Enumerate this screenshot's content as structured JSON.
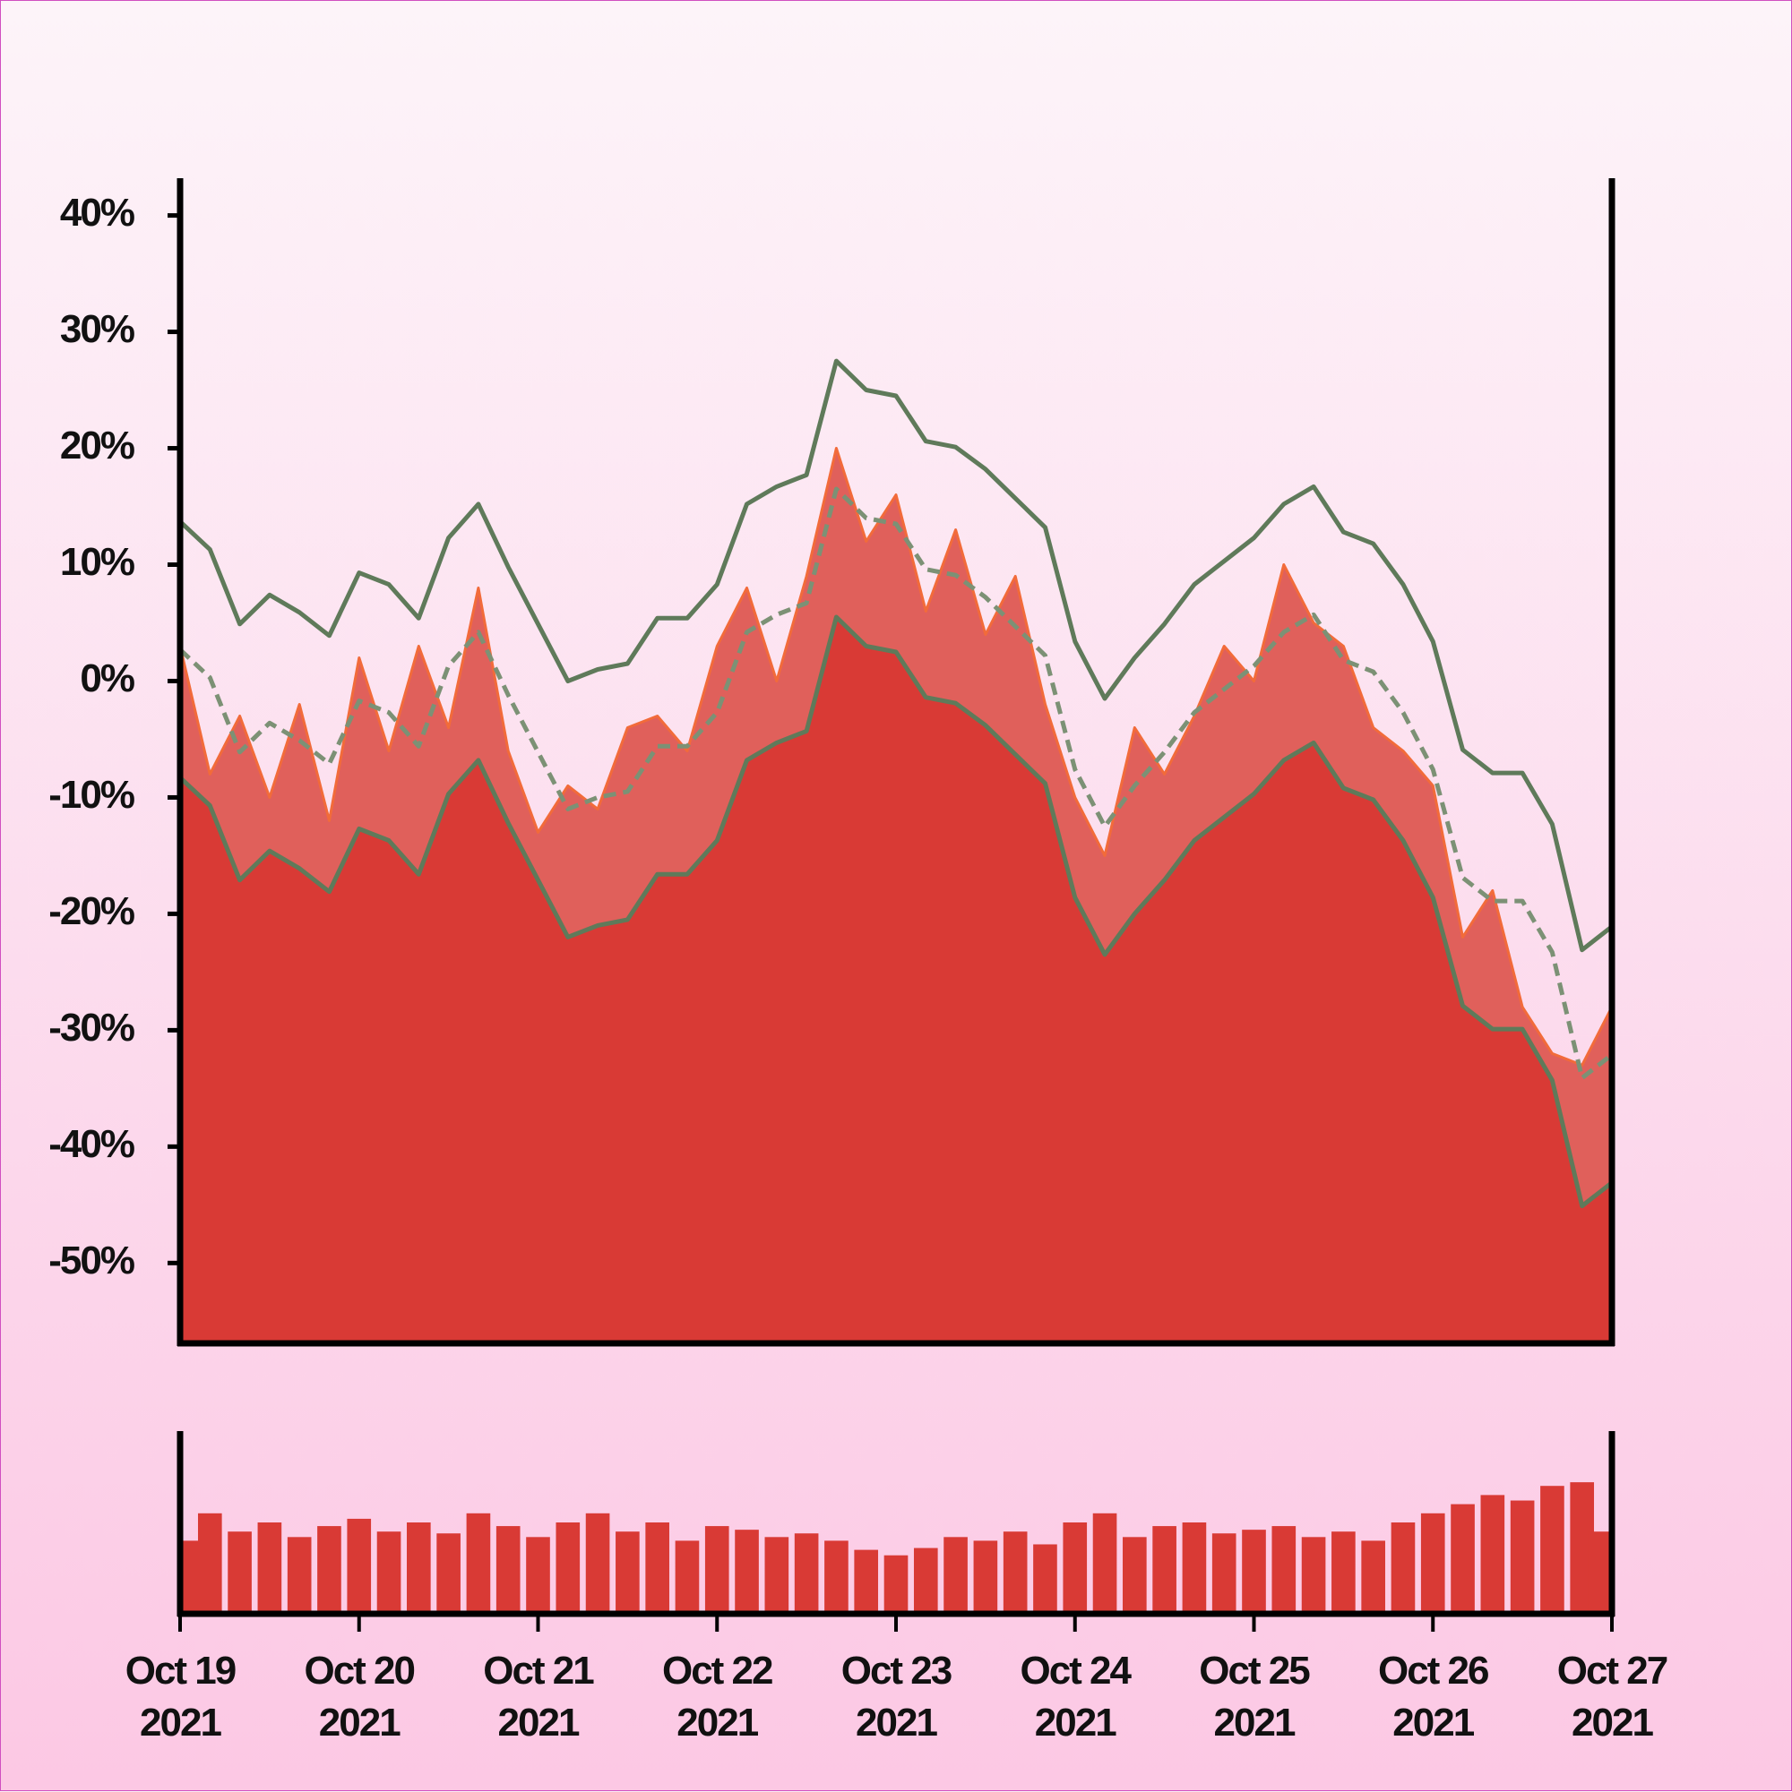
{
  "chart_data": [
    {
      "type": "band-area",
      "x": [
        0,
        0.1667,
        0.3333,
        0.5,
        0.6667,
        0.8333,
        1,
        1.1667,
        1.3333,
        1.5,
        1.6667,
        1.8333,
        2,
        2.1667,
        2.3333,
        2.5,
        2.6667,
        2.8333,
        3,
        3.1667,
        3.3333,
        3.5,
        3.6667,
        3.8333,
        4,
        4.1667,
        4.3333,
        4.5,
        4.6667,
        4.8333,
        5,
        5.1667,
        5.3333,
        5.5,
        5.6667,
        5.8333,
        6,
        6.1667,
        6.3333,
        6.5,
        6.6667,
        6.8333,
        7,
        7.1667,
        7.3333,
        7.5,
        7.6667,
        7.8333,
        8
      ],
      "xlim": [
        0,
        8
      ],
      "ylim": [
        -56.9,
        43.2
      ],
      "yticks": [
        {
          "value": -50,
          "label": "-50%"
        },
        {
          "value": -40,
          "label": "-40%"
        },
        {
          "value": -30,
          "label": "-30%"
        },
        {
          "value": -20,
          "label": "-20%"
        },
        {
          "value": -10,
          "label": "-10%"
        },
        {
          "value": 0,
          "label": "0%"
        },
        {
          "value": 10,
          "label": "10%"
        },
        {
          "value": 20,
          "label": "20%"
        },
        {
          "value": 30,
          "label": "30%"
        },
        {
          "value": 40,
          "label": "40%"
        }
      ],
      "series": [
        {
          "role": "price",
          "color": "#f26b3a",
          "fill": "#e0605b",
          "values": [
            3,
            -8,
            -3,
            -10,
            -2,
            -12,
            2,
            -6,
            3,
            -4,
            8,
            -6,
            -13,
            -9,
            -11,
            -4,
            -3,
            -6,
            3,
            8,
            0,
            9,
            20,
            12,
            16,
            6,
            13,
            4,
            9,
            -2,
            -10,
            -15,
            -4,
            -8,
            -3,
            3,
            0,
            10,
            5,
            3,
            -4,
            -6,
            -9,
            -22,
            -18,
            -28,
            -32,
            -33,
            -28
          ]
        },
        {
          "role": "lower",
          "color": "#5f7a5a",
          "fill": "#d93a35",
          "values": [
            -8.3,
            -10.7,
            -17.1,
            -14.6,
            -16.1,
            -18.1,
            -12.7,
            -13.7,
            -16.6,
            -9.7,
            -6.8,
            -12.2,
            -17.1,
            -22,
            -21,
            -20.5,
            -16.6,
            -16.6,
            -13.7,
            -6.8,
            -5.3,
            -4.3,
            5.5,
            3,
            2.5,
            -1.4,
            -1.9,
            -3.8,
            -6.3,
            -8.8,
            -18.6,
            -23.5,
            -20,
            -17.1,
            -13.7,
            -11.7,
            -9.7,
            -6.8,
            -5.3,
            -9.2,
            -10.2,
            -13.7,
            -18.6,
            -27.9,
            -29.9,
            -29.9,
            -34.3,
            -45.1,
            -43.1
          ]
        },
        {
          "role": "middle",
          "color": "#7c9175",
          "dashed": true,
          "values": [
            2.7,
            0.3,
            -6.1,
            -3.6,
            -5.1,
            -7.1,
            -1.7,
            -2.7,
            -5.6,
            1.3,
            4.2,
            -1.2,
            -6.1,
            -11,
            -10,
            -9.5,
            -5.6,
            -5.6,
            -2.7,
            4.2,
            5.7,
            6.7,
            16.5,
            14,
            13.5,
            9.6,
            9.1,
            7.2,
            4.7,
            2.2,
            -7.6,
            -12.5,
            -9,
            -6.1,
            -2.7,
            -0.7,
            1.3,
            4.2,
            5.7,
            1.8,
            0.8,
            -2.7,
            -7.6,
            -16.9,
            -18.9,
            -18.9,
            -23.3,
            -34.1,
            -32.1
          ]
        },
        {
          "role": "upper",
          "color": "#5f7a5a",
          "values": [
            13.7,
            11.3,
            4.9,
            7.4,
            5.9,
            3.9,
            9.3,
            8.3,
            5.4,
            12.3,
            15.2,
            9.8,
            4.9,
            0,
            1,
            1.5,
            5.4,
            5.4,
            8.3,
            15.2,
            16.7,
            17.7,
            27.5,
            25,
            24.5,
            20.6,
            20.1,
            18.2,
            15.7,
            13.2,
            3.4,
            -1.5,
            2,
            4.9,
            8.3,
            10.3,
            12.3,
            15.2,
            16.7,
            12.8,
            11.8,
            8.3,
            3.4,
            -5.9,
            -7.9,
            -7.9,
            -12.3,
            -23.1,
            -21.1
          ]
        }
      ]
    },
    {
      "type": "volume-bar",
      "x": [
        0,
        0.1667,
        0.3333,
        0.5,
        0.6667,
        0.8333,
        1,
        1.1667,
        1.3333,
        1.5,
        1.6667,
        1.8333,
        2,
        2.1667,
        2.3333,
        2.5,
        2.6667,
        2.8333,
        3,
        3.1667,
        3.3333,
        3.5,
        3.6667,
        3.8333,
        4,
        4.1667,
        4.3333,
        4.5,
        4.6667,
        4.8333,
        5,
        5.1667,
        5.3333,
        5.5,
        5.6667,
        5.8333,
        6,
        6.1667,
        6.3333,
        6.5,
        6.6667,
        6.8333,
        7,
        7.1667,
        7.3333,
        7.5,
        7.6667,
        7.8333,
        8
      ],
      "xlim": [
        0,
        8
      ],
      "ylim": [
        0,
        100
      ],
      "color": "#d93a35",
      "values": [
        40,
        55,
        45,
        50,
        42,
        48,
        52,
        45,
        50,
        44,
        55,
        48,
        42,
        50,
        55,
        45,
        50,
        40,
        48,
        46,
        42,
        44,
        40,
        35,
        32,
        36,
        42,
        40,
        45,
        38,
        50,
        55,
        42,
        48,
        50,
        44,
        46,
        48,
        42,
        45,
        40,
        50,
        55,
        60,
        65,
        62,
        70,
        72,
        45
      ],
      "xticks": [
        {
          "value": 0,
          "label": "Oct 19 2021"
        },
        {
          "value": 1,
          "label": "Oct 20 2021"
        },
        {
          "value": 2,
          "label": "Oct 21 2021"
        },
        {
          "value": 3,
          "label": "Oct 22 2021"
        },
        {
          "value": 4,
          "label": "Oct 23 2021"
        },
        {
          "value": 5,
          "label": "Oct 24 2021"
        },
        {
          "value": 6,
          "label": "Oct 25 2021"
        },
        {
          "value": 7,
          "label": "Oct 26 2021"
        },
        {
          "value": 8,
          "label": "Oct 27 2021"
        }
      ]
    }
  ]
}
